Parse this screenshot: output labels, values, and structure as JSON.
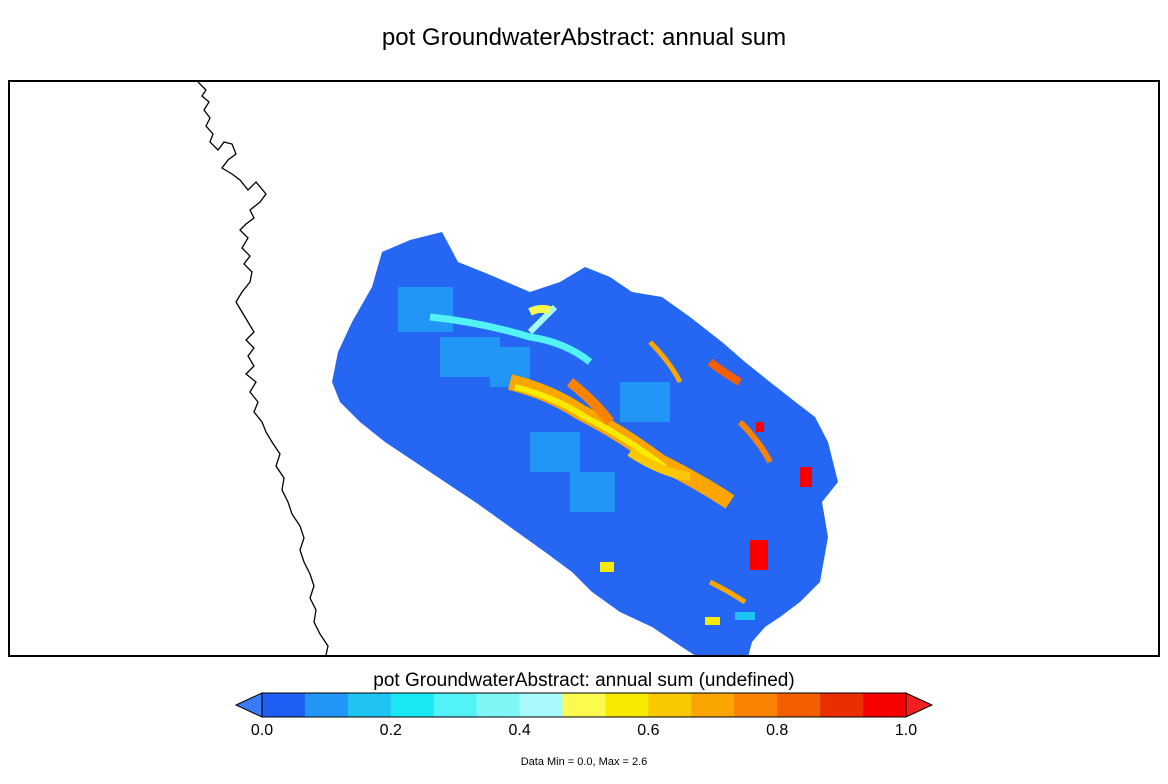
{
  "title": "pot GroundwaterAbstract: annual sum",
  "colorbar": {
    "title": "pot GroundwaterAbstract: annual sum (undefined)",
    "ticks": [
      "0.0",
      "0.2",
      "0.4",
      "0.6",
      "0.8",
      "1.0"
    ],
    "min": 0.0,
    "max": 1.0,
    "colors": [
      "#1f5ef5",
      "#2196f7",
      "#1fc4f5",
      "#19e8f2",
      "#52f2f7",
      "#7ef6f6",
      "#a8fafa",
      "#fbfb4f",
      "#f9eb00",
      "#f9c800",
      "#faa500",
      "#f98200",
      "#f35f00",
      "#ea2e00",
      "#f80000"
    ],
    "under_color": "#3a7cf5",
    "over_color": "#f02020"
  },
  "stats": "Data Min = 0.0, Max = 2.6"
}
